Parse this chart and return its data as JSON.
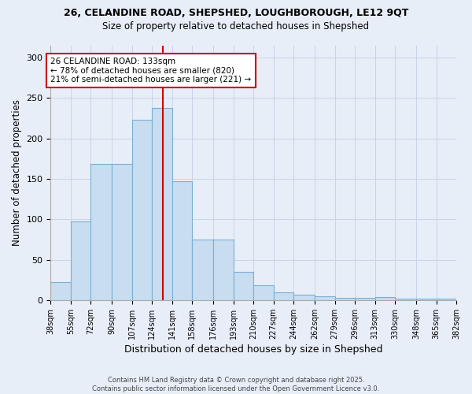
{
  "title_line1": "26, CELANDINE ROAD, SHEPSHED, LOUGHBOROUGH, LE12 9QT",
  "title_line2": "Size of property relative to detached houses in Shepshed",
  "xlabel": "Distribution of detached houses by size in Shepshed",
  "ylabel": "Number of detached properties",
  "bar_color": "#c8ddf0",
  "bar_edge_color": "#7aafd4",
  "vline_color": "#cc0000",
  "vline_x": 133,
  "annotation_text": "26 CELANDINE ROAD: 133sqm\n← 78% of detached houses are smaller (820)\n21% of semi-detached houses are larger (221) →",
  "annotation_box_facecolor": "#ffffff",
  "annotation_box_edgecolor": "#cc0000",
  "bin_edges": [
    38,
    55,
    72,
    90,
    107,
    124,
    141,
    158,
    176,
    193,
    210,
    227,
    244,
    262,
    279,
    296,
    313,
    330,
    348,
    365,
    382
  ],
  "heights": [
    22,
    97,
    168,
    168,
    223,
    238,
    147,
    75,
    75,
    35,
    18,
    10,
    7,
    5,
    3,
    3,
    4,
    2,
    2,
    2
  ],
  "ylim": [
    0,
    315
  ],
  "yticks": [
    0,
    50,
    100,
    150,
    200,
    250,
    300
  ],
  "grid_color": "#c8d4e8",
  "background_color": "#e8eef8",
  "footer_text": "Contains HM Land Registry data © Crown copyright and database right 2025.\nContains public sector information licensed under the Open Government Licence v3.0."
}
